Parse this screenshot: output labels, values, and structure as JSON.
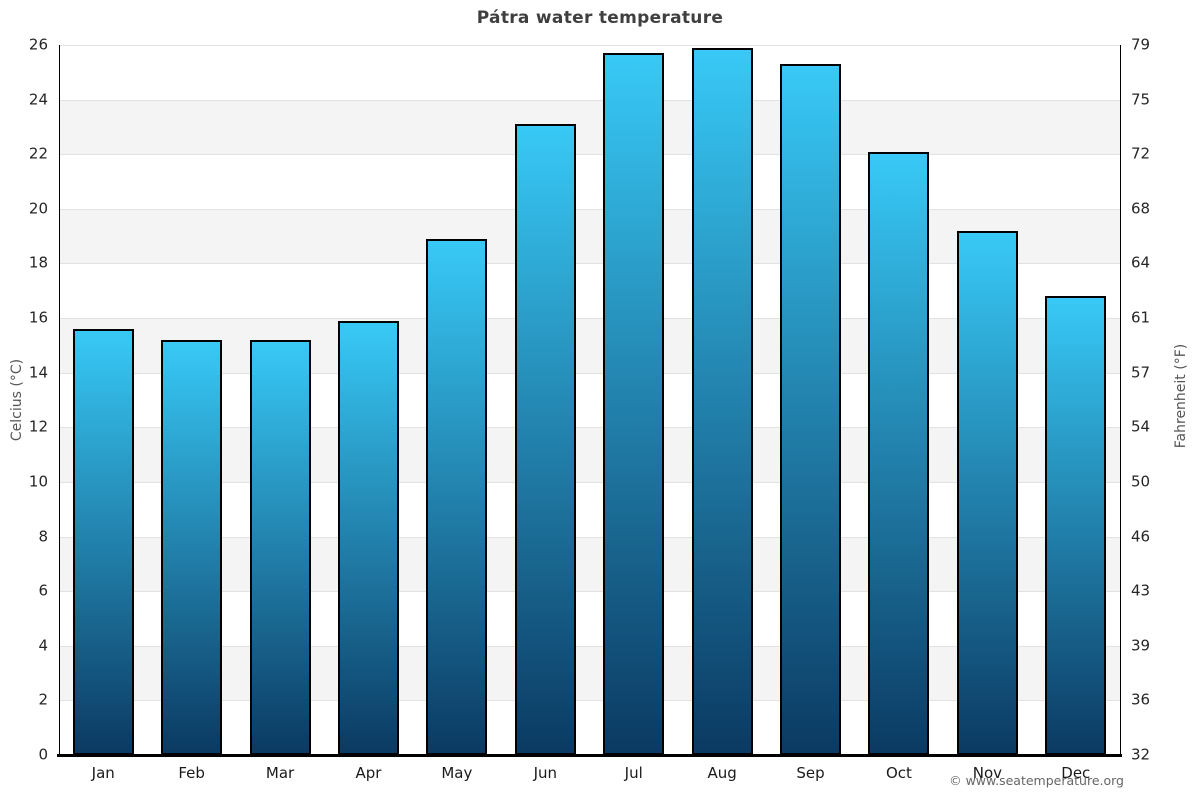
{
  "page": {
    "attribution": "© www.seatemperature.org"
  },
  "chart_data": {
    "type": "bar",
    "title": "Pátra water temperature",
    "categories": [
      "Jan",
      "Feb",
      "Mar",
      "Apr",
      "May",
      "Jun",
      "Jul",
      "Aug",
      "Sep",
      "Oct",
      "Nov",
      "Dec"
    ],
    "values": [
      15.6,
      15.2,
      15.2,
      15.9,
      18.9,
      23.1,
      25.7,
      25.9,
      25.3,
      22.1,
      19.2,
      16.8
    ],
    "series_name": "Water temperature",
    "xlabel": "",
    "ylabel_left": "Celcius (°C)",
    "ylabel_right": "Fahrenheit (°F)",
    "ylim": [
      0,
      26
    ],
    "yticks_celsius": [
      0,
      2,
      4,
      6,
      8,
      10,
      12,
      14,
      16,
      18,
      20,
      22,
      24,
      26
    ],
    "yticks_fahrenheit": [
      "32",
      "36",
      "39",
      "43",
      "46",
      "50",
      "54",
      "57",
      "61",
      "64",
      "68",
      "72",
      "75",
      "79"
    ],
    "legend": "none",
    "grid": "horizontal gridlines with alternating shaded bands",
    "colors": {
      "bar_gradient_top": "#38c9f6",
      "bar_gradient_bottom": "#0b3a62",
      "bar_border": "#000000",
      "band_shade": "#f4f4f4",
      "gridline": "#e2e2e2",
      "axis_line": "#000000",
      "title_text": "#3f3f3f",
      "tick_text": "#262626",
      "axis_title_text": "#555555",
      "attribution_text": "#666666"
    }
  }
}
